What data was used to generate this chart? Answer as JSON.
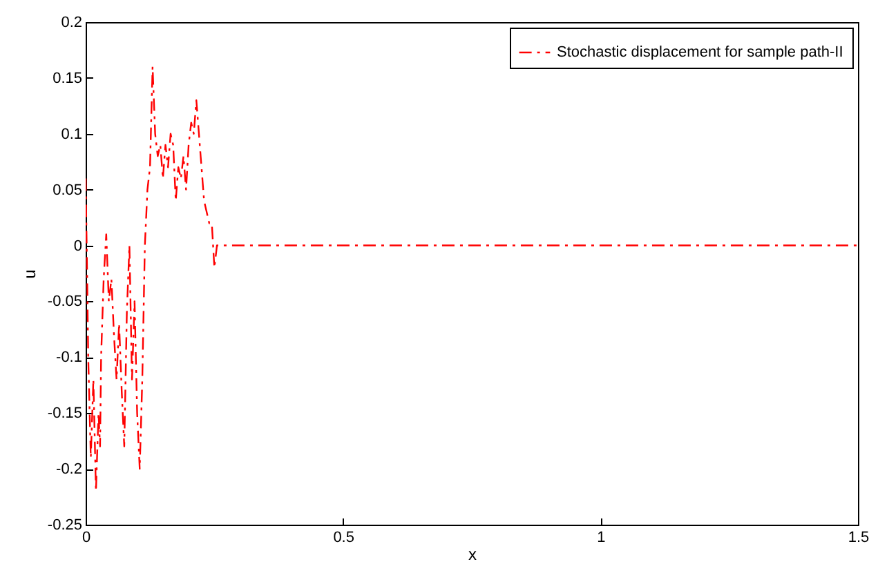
{
  "chart_data": {
    "type": "line",
    "xlabel": "x",
    "ylabel": "u",
    "x": [
      0,
      0.003,
      0.005,
      0.01,
      0.015,
      0.02,
      0.025,
      0.028,
      0.03,
      0.035,
      0.04,
      0.045,
      0.05,
      0.055,
      0.06,
      0.065,
      0.07,
      0.075,
      0.08,
      0.085,
      0.09,
      0.095,
      0.1,
      0.105,
      0.11,
      0.115,
      0.12,
      0.125,
      0.13,
      0.135,
      0.14,
      0.145,
      0.15,
      0.155,
      0.16,
      0.165,
      0.17,
      0.175,
      0.18,
      0.185,
      0.19,
      0.195,
      0.2,
      0.205,
      0.21,
      0.215,
      0.22,
      0.225,
      0.23,
      0.235,
      0.24,
      0.245,
      0.25,
      0.255,
      0.3,
      0.5,
      1,
      1.5
    ],
    "series": [
      {
        "name": "Stochastic displacement for sample path-II",
        "color": "#ff0000",
        "values": [
          0.06,
          -0.03,
          -0.1,
          -0.19,
          -0.12,
          -0.22,
          -0.15,
          -0.18,
          -0.1,
          -0.03,
          0.01,
          -0.05,
          -0.03,
          -0.08,
          -0.12,
          -0.07,
          -0.13,
          -0.18,
          -0.06,
          0,
          -0.12,
          -0.05,
          -0.15,
          -0.2,
          -0.12,
          0,
          0.05,
          0.07,
          0.16,
          0.1,
          0.08,
          0.09,
          0.06,
          0.09,
          0.07,
          0.1,
          0.09,
          0.04,
          0.07,
          0.06,
          0.08,
          0.05,
          0.09,
          0.11,
          0.1,
          0.13,
          0.1,
          0.07,
          0.04,
          0.03,
          0.02,
          0.02,
          -0.02,
          0,
          0,
          0,
          0,
          0
        ]
      }
    ],
    "xlim": [
      0,
      1.5
    ],
    "xticks": [
      0,
      0.5,
      1,
      1.5
    ],
    "ylim": [
      -0.25,
      0.2
    ],
    "yticks": [
      -0.25,
      -0.2,
      -0.15,
      -0.1,
      -0.05,
      0,
      0.05,
      0.1,
      0.15,
      0.2
    ],
    "grid": false,
    "legend": "top right",
    "marker": "none",
    "line_style": "dashed"
  }
}
